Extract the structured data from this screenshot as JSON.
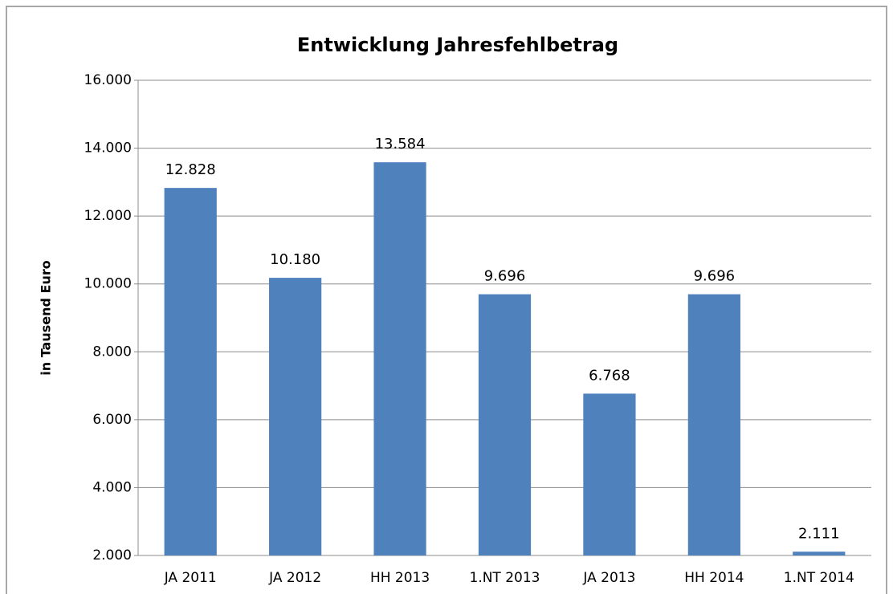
{
  "chart_data": {
    "type": "bar",
    "title": "Entwicklung Jahresfehlbetrag",
    "y_label": "in Tausend Euro",
    "categories": [
      "JA 2011",
      "JA 2012",
      "HH 2013",
      "1.NT 2013",
      "JA 2013",
      "HH 2014",
      "1.NT 2014"
    ],
    "values": [
      12828,
      10180,
      13584,
      9696,
      6768,
      9696,
      2111
    ],
    "value_labels": [
      "12.828",
      "10.180",
      "13.584",
      "9.696",
      "6.768",
      "9.696",
      "2.111"
    ],
    "color": "#4f81bd",
    "ylim": [
      2000,
      16000
    ],
    "yticks": [
      {
        "value": 2000,
        "label": "2.000"
      },
      {
        "value": 4000,
        "label": "4.000"
      },
      {
        "value": 6000,
        "label": "6.000"
      },
      {
        "value": 8000,
        "label": "8.000"
      },
      {
        "value": 10000,
        "label": "10.000"
      },
      {
        "value": 12000,
        "label": "12.000"
      },
      {
        "value": 14000,
        "label": "14.000"
      },
      {
        "value": 16000,
        "label": "16.000"
      }
    ],
    "grid": true
  }
}
